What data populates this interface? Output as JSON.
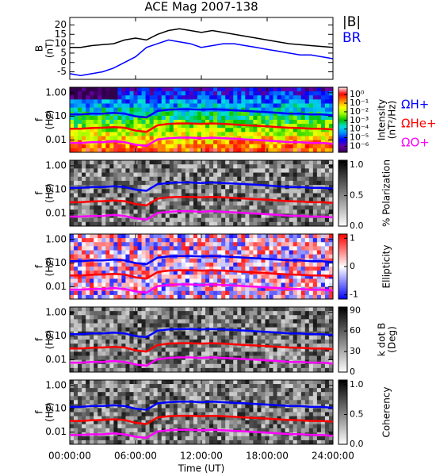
{
  "chart_data": [
    {
      "type": "line",
      "title": "ACE Mag 2007-138",
      "ylabel": [
        "B",
        "(nT)"
      ],
      "legend": "right",
      "x": [
        0,
        1,
        2,
        3,
        4,
        5,
        6,
        7,
        8,
        9,
        10,
        11,
        12,
        13,
        14,
        15,
        16,
        17,
        18,
        19,
        20,
        21,
        22,
        23,
        24
      ],
      "xlim": [
        0,
        24
      ],
      "ylim": [
        -9,
        24
      ],
      "yticks": [
        -5,
        0,
        5,
        10,
        15,
        20
      ],
      "series": [
        {
          "name": "|B|",
          "color": "#000000",
          "values": [
            8,
            8,
            9,
            9.5,
            10,
            12,
            13,
            12,
            15,
            17,
            18,
            17,
            16,
            17,
            16,
            15,
            14,
            13,
            12,
            11,
            10,
            9.5,
            9,
            8.5,
            8
          ]
        },
        {
          "name": "BR",
          "color": "#0000ff",
          "values": [
            -6,
            -7,
            -6,
            -5,
            -3,
            0,
            3,
            8,
            10,
            12,
            11,
            10,
            8,
            9,
            10,
            10,
            9,
            8,
            7,
            6,
            5,
            4,
            4,
            3,
            2
          ]
        }
      ]
    },
    {
      "type": "line",
      "yscale": "log",
      "ylabel": [
        "f",
        "(Hz)"
      ],
      "legend": "right",
      "x": [
        0,
        1,
        2,
        3,
        4,
        5,
        6,
        7,
        8,
        9,
        10,
        11,
        12,
        13,
        14,
        15,
        16,
        17,
        18,
        19,
        20,
        21,
        22,
        23,
        24
      ],
      "xlim": [
        0,
        24
      ],
      "ylim": [
        0.003,
        1.7
      ],
      "yticks": [
        0.01,
        {
          "value": 0.1,
          "label": "0.10"
        },
        {
          "value": 1,
          "label": "1.00"
        }
      ],
      "colorbar": {
        "label": [
          "Intensity",
          "(nT²/Hz)"
        ],
        "scale": "log",
        "lim": [
          2e-07,
          7
        ],
        "ticks": [
          {
            "value": 1,
            "label": "10⁰"
          },
          {
            "value": 0.1,
            "label": "10⁻¹"
          },
          {
            "value": 0.01,
            "label": "10⁻²"
          },
          {
            "value": 0.001,
            "label": "10⁻³"
          },
          {
            "value": 0.0001,
            "label": "10⁻⁴"
          },
          {
            "value": 1e-05,
            "label": "10⁻⁵"
          },
          {
            "value": 1e-06,
            "label": "10⁻⁶"
          }
        ],
        "colors": [
          "#30004a",
          "#6a00a8",
          "#0000ff",
          "#0090ff",
          "#00e0e0",
          "#00c000",
          "#a0ff00",
          "#ffff00",
          "#ff8000",
          "#ff0000",
          "#ffe0e0"
        ]
      },
      "series": [
        {
          "name": "ΩH+",
          "color": "#0000ff",
          "values": [
            0.12,
            0.12,
            0.13,
            0.13,
            0.14,
            0.13,
            0.1,
            0.09,
            0.17,
            0.19,
            0.2,
            0.2,
            0.19,
            0.2,
            0.19,
            0.18,
            0.17,
            0.16,
            0.15,
            0.14,
            0.13,
            0.13,
            0.12,
            0.12,
            0.11
          ]
        },
        {
          "name": "ΩHe+",
          "color": "#ff0000",
          "values": [
            0.03,
            0.03,
            0.032,
            0.033,
            0.035,
            0.033,
            0.025,
            0.022,
            0.042,
            0.048,
            0.05,
            0.05,
            0.048,
            0.05,
            0.048,
            0.045,
            0.042,
            0.04,
            0.038,
            0.035,
            0.033,
            0.032,
            0.03,
            0.03,
            0.028
          ]
        },
        {
          "name": "ΩO+",
          "color": "#ff00ff",
          "values": [
            0.0075,
            0.0075,
            0.008,
            0.008,
            0.0088,
            0.008,
            0.0063,
            0.0056,
            0.0106,
            0.0119,
            0.0125,
            0.0125,
            0.0119,
            0.0125,
            0.0119,
            0.0113,
            0.0106,
            0.01,
            0.0094,
            0.0088,
            0.0081,
            0.0081,
            0.0075,
            0.0075,
            0.0069
          ]
        }
      ]
    },
    {
      "type": "line",
      "yscale": "log",
      "ylabel": [
        "f",
        "(Hz)"
      ],
      "x": [
        0,
        1,
        2,
        3,
        4,
        5,
        6,
        7,
        8,
        9,
        10,
        11,
        12,
        13,
        14,
        15,
        16,
        17,
        18,
        19,
        20,
        21,
        22,
        23,
        24
      ],
      "xlim": [
        0,
        24
      ],
      "ylim": [
        0.003,
        1.7
      ],
      "yticks": [
        0.01,
        {
          "value": 0.1,
          "label": "0.10"
        },
        {
          "value": 1,
          "label": "1.00"
        }
      ],
      "colorbar": {
        "label": [
          "% Polarization"
        ],
        "lim": [
          0,
          1.08
        ],
        "ticks": [
          {
            "value": 0,
            "label": "0.0"
          },
          0.5,
          {
            "value": 1,
            "label": "1.0"
          }
        ],
        "colors": [
          "#ffffff",
          "#000000"
        ]
      },
      "series": [
        {
          "color": "#0000ff",
          "values": [
            0.12,
            0.12,
            0.13,
            0.13,
            0.14,
            0.13,
            0.1,
            0.09,
            0.17,
            0.19,
            0.2,
            0.2,
            0.19,
            0.2,
            0.19,
            0.18,
            0.17,
            0.16,
            0.15,
            0.14,
            0.13,
            0.13,
            0.12,
            0.12,
            0.11
          ]
        },
        {
          "color": "#ff0000",
          "values": [
            0.03,
            0.03,
            0.032,
            0.033,
            0.035,
            0.033,
            0.025,
            0.022,
            0.042,
            0.048,
            0.05,
            0.05,
            0.048,
            0.05,
            0.048,
            0.045,
            0.042,
            0.04,
            0.038,
            0.035,
            0.033,
            0.032,
            0.03,
            0.03,
            0.028
          ]
        },
        {
          "color": "#ff00ff",
          "values": [
            0.0075,
            0.0075,
            0.008,
            0.008,
            0.0088,
            0.008,
            0.0063,
            0.0056,
            0.0106,
            0.0119,
            0.0125,
            0.0125,
            0.0119,
            0.0125,
            0.0119,
            0.0113,
            0.0106,
            0.01,
            0.0094,
            0.0088,
            0.0081,
            0.0081,
            0.0075,
            0.0075,
            0.0069
          ]
        }
      ]
    },
    {
      "type": "line",
      "yscale": "log",
      "ylabel": [
        "f",
        "(Hz)"
      ],
      "x": [
        0,
        1,
        2,
        3,
        4,
        5,
        6,
        7,
        8,
        9,
        10,
        11,
        12,
        13,
        14,
        15,
        16,
        17,
        18,
        19,
        20,
        21,
        22,
        23,
        24
      ],
      "xlim": [
        0,
        24
      ],
      "ylim": [
        0.003,
        1.7
      ],
      "yticks": [
        0.01,
        {
          "value": 0.1,
          "label": "0.10"
        },
        {
          "value": 1,
          "label": "1.00"
        }
      ],
      "colorbar": {
        "label": [
          "Ellipticity"
        ],
        "lim": [
          -1.15,
          1.15
        ],
        "ticks": [
          -1,
          0,
          1
        ],
        "colors": [
          "#0000ff",
          "#ffffff",
          "#ff0000"
        ]
      },
      "series": [
        {
          "color": "#0000ff",
          "values": [
            0.12,
            0.12,
            0.13,
            0.13,
            0.14,
            0.13,
            0.1,
            0.09,
            0.17,
            0.19,
            0.2,
            0.2,
            0.19,
            0.2,
            0.19,
            0.18,
            0.17,
            0.16,
            0.15,
            0.14,
            0.13,
            0.13,
            0.12,
            0.12,
            0.11
          ]
        },
        {
          "color": "#ff0000",
          "values": [
            0.03,
            0.03,
            0.032,
            0.033,
            0.035,
            0.033,
            0.025,
            0.022,
            0.042,
            0.048,
            0.05,
            0.05,
            0.048,
            0.05,
            0.048,
            0.045,
            0.042,
            0.04,
            0.038,
            0.035,
            0.033,
            0.032,
            0.03,
            0.03,
            0.028
          ]
        },
        {
          "color": "#ff00ff",
          "values": [
            0.0075,
            0.0075,
            0.008,
            0.008,
            0.0088,
            0.008,
            0.0063,
            0.0056,
            0.0106,
            0.0119,
            0.0125,
            0.0125,
            0.0119,
            0.0125,
            0.0119,
            0.0113,
            0.0106,
            0.01,
            0.0094,
            0.0088,
            0.0081,
            0.0081,
            0.0075,
            0.0075,
            0.0069
          ]
        }
      ]
    },
    {
      "type": "line",
      "yscale": "log",
      "ylabel": [
        "f",
        "(Hz)"
      ],
      "x": [
        0,
        1,
        2,
        3,
        4,
        5,
        6,
        7,
        8,
        9,
        10,
        11,
        12,
        13,
        14,
        15,
        16,
        17,
        18,
        19,
        20,
        21,
        22,
        23,
        24
      ],
      "xlim": [
        0,
        24
      ],
      "ylim": [
        0.003,
        1.7
      ],
      "yticks": [
        0.01,
        {
          "value": 0.1,
          "label": "0.10"
        },
        {
          "value": 1,
          "label": "1.00"
        }
      ],
      "colorbar": {
        "label": [
          "k dot B",
          "(Deg)"
        ],
        "lim": [
          0,
          95
        ],
        "ticks": [
          0,
          30,
          60,
          90
        ],
        "colors": [
          "#ffffff",
          "#000000"
        ]
      },
      "series": [
        {
          "color": "#0000ff",
          "values": [
            0.12,
            0.12,
            0.13,
            0.13,
            0.14,
            0.13,
            0.1,
            0.09,
            0.17,
            0.19,
            0.2,
            0.2,
            0.19,
            0.2,
            0.19,
            0.18,
            0.17,
            0.16,
            0.15,
            0.14,
            0.13,
            0.13,
            0.12,
            0.12,
            0.11
          ]
        },
        {
          "color": "#ff0000",
          "values": [
            0.03,
            0.03,
            0.032,
            0.033,
            0.035,
            0.033,
            0.025,
            0.022,
            0.042,
            0.048,
            0.05,
            0.05,
            0.048,
            0.05,
            0.048,
            0.045,
            0.042,
            0.04,
            0.038,
            0.035,
            0.033,
            0.032,
            0.03,
            0.03,
            0.028
          ]
        },
        {
          "color": "#ff00ff",
          "values": [
            0.0075,
            0.0075,
            0.008,
            0.008,
            0.0088,
            0.008,
            0.0063,
            0.0056,
            0.0106,
            0.0119,
            0.0125,
            0.0125,
            0.0119,
            0.0125,
            0.0119,
            0.0113,
            0.0106,
            0.01,
            0.0094,
            0.0088,
            0.0081,
            0.0081,
            0.0075,
            0.0075,
            0.0069
          ]
        }
      ]
    },
    {
      "type": "line",
      "yscale": "log",
      "ylabel": [
        "f",
        "(Hz)"
      ],
      "xlabel": "Time (UT)",
      "x": [
        0,
        1,
        2,
        3,
        4,
        5,
        6,
        7,
        8,
        9,
        10,
        11,
        12,
        13,
        14,
        15,
        16,
        17,
        18,
        19,
        20,
        21,
        22,
        23,
        24
      ],
      "xlim": [
        0,
        24
      ],
      "xticks": [
        {
          "value": 0,
          "label": "00:00:00"
        },
        {
          "value": 6,
          "label": "06:00:00"
        },
        {
          "value": 12,
          "label": "12:00:00"
        },
        {
          "value": 18,
          "label": "18:00:00"
        },
        {
          "value": 24,
          "label": "24:00:00"
        }
      ],
      "ylim": [
        0.003,
        1.7
      ],
      "yticks": [
        0.01,
        {
          "value": 0.1,
          "label": "0.10"
        },
        {
          "value": 1,
          "label": "1.00"
        }
      ],
      "colorbar": {
        "label": [
          "Coherency"
        ],
        "lim": [
          0,
          1.08
        ],
        "ticks": [
          {
            "value": 0,
            "label": "0.0"
          },
          0.5,
          {
            "value": 1,
            "label": "1.0"
          }
        ],
        "colors": [
          "#ffffff",
          "#000000"
        ]
      },
      "series": [
        {
          "color": "#0000ff",
          "values": [
            0.12,
            0.12,
            0.13,
            0.13,
            0.14,
            0.13,
            0.1,
            0.09,
            0.17,
            0.19,
            0.2,
            0.2,
            0.19,
            0.2,
            0.19,
            0.18,
            0.17,
            0.16,
            0.15,
            0.14,
            0.13,
            0.13,
            0.12,
            0.12,
            0.11
          ]
        },
        {
          "color": "#ff0000",
          "values": [
            0.03,
            0.03,
            0.032,
            0.033,
            0.035,
            0.033,
            0.025,
            0.022,
            0.042,
            0.048,
            0.05,
            0.05,
            0.048,
            0.05,
            0.048,
            0.045,
            0.042,
            0.04,
            0.038,
            0.035,
            0.033,
            0.032,
            0.03,
            0.03,
            0.028
          ]
        },
        {
          "color": "#ff00ff",
          "values": [
            0.0075,
            0.0075,
            0.008,
            0.008,
            0.0088,
            0.008,
            0.0063,
            0.0056,
            0.0106,
            0.0119,
            0.0125,
            0.0125,
            0.0119,
            0.0125,
            0.0119,
            0.0113,
            0.0106,
            0.01,
            0.0094,
            0.0088,
            0.0081,
            0.0081,
            0.0075,
            0.0075,
            0.0069
          ]
        }
      ]
    }
  ]
}
